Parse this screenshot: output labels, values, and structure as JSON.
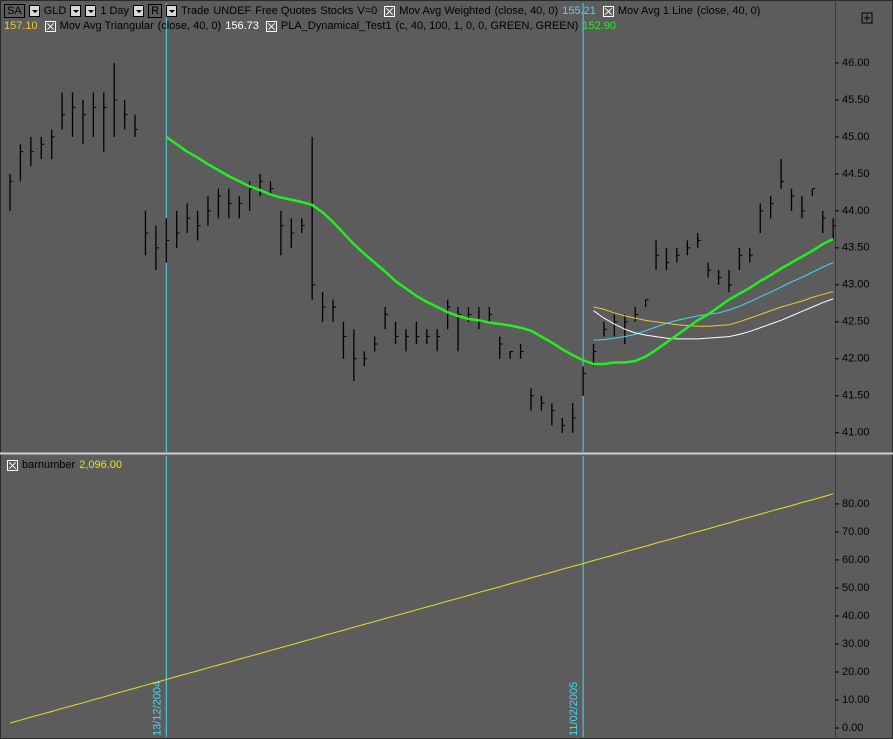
{
  "toolbar": {
    "symbol_box": "SA",
    "symbol": "GLD",
    "interval": "1 Day",
    "mode": "R",
    "items": [
      "Trade",
      "UNDEF",
      "Free Quotes",
      "Stocks",
      "V=0"
    ]
  },
  "chart_data": [
    {
      "type": "ohlc",
      "color": "#000000",
      "high": [
        44.5,
        44.9,
        45.0,
        45.0,
        45.1,
        45.6,
        45.6,
        45.5,
        45.6,
        45.6,
        46.0,
        45.5,
        45.3,
        44.0,
        43.8,
        43.9,
        44.0,
        44.1,
        44.0,
        44.2,
        44.3,
        44.3,
        44.2,
        44.4,
        44.5,
        44.4,
        44.0,
        43.9,
        43.9,
        45.0,
        42.9,
        42.8,
        42.5,
        42.4,
        42.1,
        42.3,
        42.7,
        42.5,
        42.4,
        42.5,
        42.4,
        42.4,
        42.8,
        42.7,
        42.7,
        42.7,
        42.7,
        42.3,
        42.1,
        42.2,
        41.6,
        41.5,
        41.4,
        41.2,
        41.4,
        41.9,
        42.2,
        42.5,
        42.6,
        42.6,
        42.7,
        42.8,
        43.6,
        43.5,
        43.5,
        43.6,
        43.7,
        43.3,
        43.2,
        43.2,
        43.5,
        43.5,
        44.1,
        44.2,
        44.7,
        44.3,
        44.2,
        44.3,
        44.0,
        43.9
      ],
      "low": [
        44.0,
        44.4,
        44.6,
        44.7,
        44.7,
        45.1,
        45.0,
        44.9,
        45.0,
        44.8,
        45.0,
        45.1,
        45.0,
        43.4,
        43.2,
        43.3,
        43.5,
        43.7,
        43.6,
        43.8,
        43.9,
        43.9,
        43.9,
        44.0,
        44.2,
        44.2,
        43.4,
        43.5,
        43.7,
        42.8,
        42.5,
        42.5,
        42.0,
        41.7,
        41.9,
        42.1,
        42.4,
        42.2,
        42.1,
        42.2,
        42.2,
        42.1,
        42.4,
        42.1,
        42.5,
        42.4,
        42.5,
        42.0,
        42.0,
        42.0,
        41.3,
        41.3,
        41.1,
        41.0,
        41.0,
        41.5,
        41.9,
        42.3,
        42.3,
        42.2,
        42.5,
        42.7,
        43.2,
        43.2,
        43.3,
        43.4,
        43.5,
        43.1,
        43.0,
        42.9,
        43.2,
        43.3,
        43.7,
        43.9,
        44.3,
        44.0,
        43.9,
        44.2,
        43.7,
        43.6
      ],
      "close": [
        44.4,
        44.8,
        44.8,
        44.9,
        45.0,
        45.3,
        45.4,
        45.3,
        45.4,
        45.4,
        45.5,
        45.3,
        45.1,
        43.7,
        43.5,
        43.6,
        43.7,
        43.9,
        43.8,
        44.0,
        44.2,
        44.1,
        44.1,
        44.3,
        44.4,
        44.3,
        43.8,
        43.7,
        43.8,
        43.0,
        42.7,
        42.7,
        42.3,
        42.0,
        42.0,
        42.2,
        42.6,
        42.3,
        42.3,
        42.3,
        42.3,
        42.3,
        42.7,
        42.6,
        42.6,
        42.5,
        42.6,
        42.2,
        42.1,
        42.1,
        41.5,
        41.4,
        41.3,
        41.1,
        41.2,
        41.8,
        42.1,
        42.4,
        42.5,
        42.5,
        42.6,
        42.8,
        43.4,
        43.3,
        43.4,
        43.5,
        43.6,
        43.2,
        43.1,
        43.0,
        43.4,
        43.4,
        44.0,
        44.1,
        44.4,
        44.2,
        44.0,
        44.3,
        43.9,
        43.8
      ],
      "series": [
        {
          "name": "Mov Avg Weighted",
          "params": "(close, 40, 0)",
          "readout": "155.21",
          "color": "#48d8f0",
          "values": [
            null,
            null,
            null,
            null,
            null,
            null,
            null,
            null,
            null,
            null,
            null,
            null,
            null,
            null,
            null,
            null,
            null,
            null,
            null,
            null,
            null,
            null,
            null,
            null,
            null,
            null,
            null,
            null,
            null,
            null,
            null,
            null,
            null,
            null,
            null,
            null,
            null,
            null,
            null,
            null,
            null,
            null,
            null,
            null,
            null,
            null,
            null,
            null,
            null,
            null,
            null,
            null,
            null,
            null,
            null,
            null,
            42.25,
            42.26,
            42.28,
            42.3,
            42.33,
            42.38,
            42.43,
            42.48,
            42.52,
            42.55,
            42.58,
            42.6,
            42.62,
            42.66,
            42.71,
            42.77,
            42.84,
            42.9,
            42.97,
            43.04,
            43.1,
            43.17,
            43.24,
            43.3
          ]
        },
        {
          "name": "Mov Avg 1 Line",
          "params": "(close, 40, 0)",
          "readout": "157.10",
          "color": "#ecc838",
          "values": [
            null,
            null,
            null,
            null,
            null,
            null,
            null,
            null,
            null,
            null,
            null,
            null,
            null,
            null,
            null,
            null,
            null,
            null,
            null,
            null,
            null,
            null,
            null,
            null,
            null,
            null,
            null,
            null,
            null,
            null,
            null,
            null,
            null,
            null,
            null,
            null,
            null,
            null,
            null,
            null,
            null,
            null,
            null,
            null,
            null,
            null,
            null,
            null,
            null,
            null,
            null,
            null,
            null,
            null,
            null,
            null,
            42.7,
            42.67,
            42.62,
            42.58,
            42.55,
            42.52,
            42.5,
            42.48,
            42.46,
            42.45,
            42.44,
            42.44,
            42.45,
            42.46,
            42.5,
            42.55,
            42.6,
            42.65,
            42.7,
            42.74,
            42.78,
            42.83,
            42.87,
            42.91
          ]
        },
        {
          "name": "Mov Avg Triangular",
          "params": "(close, 40, 0)",
          "readout": "156.73",
          "color": "#ffffff",
          "values": [
            null,
            null,
            null,
            null,
            null,
            null,
            null,
            null,
            null,
            null,
            null,
            null,
            null,
            null,
            null,
            null,
            null,
            null,
            null,
            null,
            null,
            null,
            null,
            null,
            null,
            null,
            null,
            null,
            null,
            null,
            null,
            null,
            null,
            null,
            null,
            null,
            null,
            null,
            null,
            null,
            null,
            null,
            null,
            null,
            null,
            null,
            null,
            null,
            null,
            null,
            null,
            null,
            null,
            null,
            null,
            null,
            42.65,
            42.55,
            42.47,
            42.4,
            42.35,
            42.32,
            42.3,
            42.28,
            42.27,
            42.27,
            42.27,
            42.28,
            42.29,
            42.3,
            42.33,
            42.37,
            42.42,
            42.47,
            42.52,
            42.58,
            42.64,
            42.7,
            42.76,
            42.81
          ]
        },
        {
          "name": "PLA_Dynamical_Test1",
          "params": "(c, 40, 100, 1, 0, 0, GREEN, GREEN)",
          "readout": "152.90",
          "color": "#22ee22",
          "values": [
            null,
            null,
            null,
            null,
            null,
            null,
            null,
            null,
            null,
            null,
            null,
            null,
            null,
            null,
            null,
            45.0,
            44.9,
            44.8,
            44.72,
            44.63,
            44.55,
            44.47,
            44.4,
            44.33,
            44.28,
            44.22,
            44.18,
            44.15,
            44.12,
            44.08,
            43.98,
            43.85,
            43.7,
            43.55,
            43.42,
            43.3,
            43.18,
            43.05,
            42.95,
            42.85,
            42.77,
            42.7,
            42.63,
            42.58,
            42.54,
            42.52,
            42.49,
            42.47,
            42.45,
            42.42,
            42.38,
            42.3,
            42.22,
            42.13,
            42.05,
            41.98,
            41.93,
            41.93,
            41.95,
            41.95,
            41.97,
            42.03,
            42.12,
            42.22,
            42.32,
            42.42,
            42.52,
            42.6,
            42.7,
            42.8,
            42.88,
            42.96,
            43.05,
            43.13,
            43.22,
            43.3,
            43.38,
            43.46,
            43.55,
            43.62
          ]
        }
      ],
      "ylim": [
        40.74,
        46.81
      ],
      "yticks": [
        {
          "value": 41,
          "label": "41.00"
        },
        {
          "value": 41.5,
          "label": "41.50"
        },
        {
          "value": 42,
          "label": "42.00"
        },
        {
          "value": 42.5,
          "label": "42.50"
        },
        {
          "value": 43,
          "label": "43.00"
        },
        {
          "value": 43.5,
          "label": "43.50"
        },
        {
          "value": 44,
          "label": "44.00"
        },
        {
          "value": 44.5,
          "label": "44.50"
        },
        {
          "value": 45,
          "label": "45.00"
        },
        {
          "value": 45.5,
          "label": "45.50"
        },
        {
          "value": 46,
          "label": "46.00"
        }
      ]
    },
    {
      "type": "line",
      "categories": [
        null,
        null,
        null,
        null,
        null,
        null,
        null,
        null,
        null,
        null,
        null,
        null,
        null,
        null,
        null,
        "13/12/2004",
        null,
        null,
        null,
        null,
        null,
        null,
        null,
        null,
        null,
        null,
        null,
        null,
        null,
        null,
        null,
        null,
        null,
        null,
        null,
        null,
        null,
        null,
        null,
        null,
        null,
        null,
        null,
        null,
        null,
        null,
        null,
        null,
        null,
        null,
        null,
        null,
        null,
        null,
        null,
        "11/02/2005",
        null,
        null,
        null,
        null,
        null,
        null,
        null,
        null,
        null,
        null,
        null,
        null,
        null,
        null,
        null,
        null,
        null,
        null,
        null,
        null,
        null,
        null,
        null,
        null
      ],
      "category_color": "#48d8f0",
      "series": [
        {
          "name": "barnumber",
          "readout": "2,096.00",
          "color": "#e8e020",
          "values": [
            1.8,
            2.8,
            3.9,
            4.9,
            5.9,
            7.0,
            8.0,
            9.0,
            10.1,
            11.1,
            12.2,
            13.2,
            14.2,
            15.3,
            16.3,
            17.3,
            18.4,
            19.4,
            20.4,
            21.5,
            22.5,
            23.5,
            24.6,
            25.6,
            26.6,
            27.7,
            28.7,
            29.7,
            30.8,
            31.8,
            32.9,
            33.9,
            34.9,
            36.0,
            37.0,
            38.0,
            39.1,
            40.1,
            41.1,
            42.2,
            43.2,
            44.2,
            45.3,
            46.3,
            47.3,
            48.4,
            49.4,
            50.4,
            51.5,
            52.5,
            53.6,
            54.6,
            55.6,
            56.7,
            57.7,
            58.7,
            59.8,
            60.8,
            61.8,
            62.9,
            63.9,
            64.9,
            66.0,
            67.0,
            68.0,
            69.1,
            70.1,
            71.1,
            72.2,
            73.2,
            74.3,
            75.3,
            76.3,
            77.4,
            78.4,
            79.4,
            80.5,
            81.5,
            82.5,
            83.6
          ]
        }
      ],
      "ylim": [
        -3.2,
        97.1
      ],
      "yticks": [
        {
          "value": 0,
          "label": "0.00"
        },
        {
          "value": 10,
          "label": "10.00"
        },
        {
          "value": 20,
          "label": "20.00"
        },
        {
          "value": 30,
          "label": "30.00"
        },
        {
          "value": 40,
          "label": "40.00"
        },
        {
          "value": 50,
          "label": "50.00"
        },
        {
          "value": 60,
          "label": "60.00"
        },
        {
          "value": 70,
          "label": "70.00"
        },
        {
          "value": 80,
          "label": "80.00"
        }
      ]
    }
  ]
}
